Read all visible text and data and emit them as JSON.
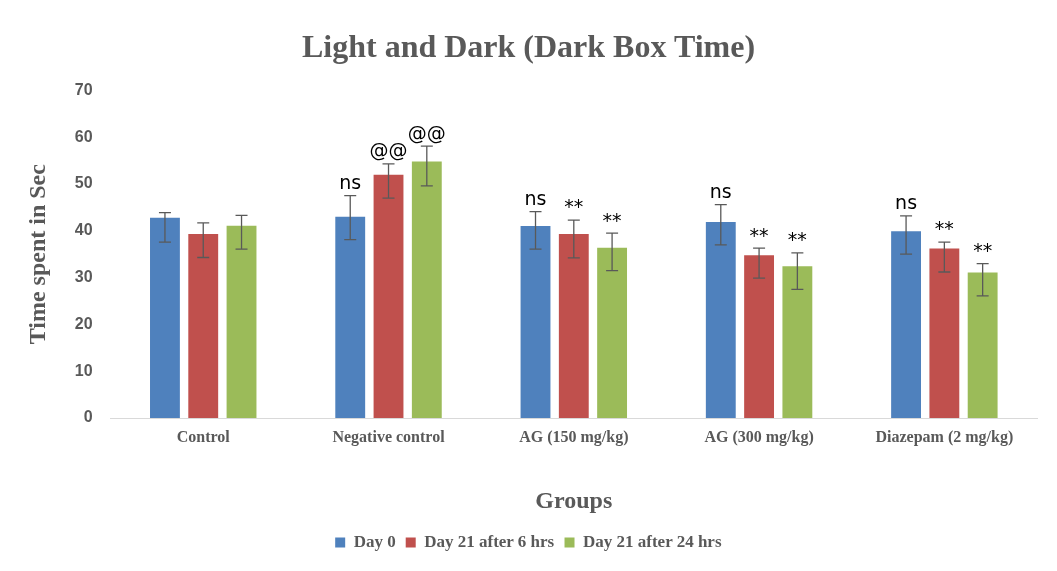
{
  "chart_data": {
    "type": "bar",
    "title": "Light and Dark (Dark Box Time)",
    "xlabel": "Groups",
    "ylabel": "Time spent in Sec",
    "categories": [
      "Control",
      "Negative control",
      "AG (150 mg/kg)",
      "AG (300 mg/kg)",
      "Diazepam (2 mg/kg)"
    ],
    "series": [
      {
        "name": "Day 0",
        "color": "#4f81bd",
        "values": [
          42.8,
          43.0,
          41.0,
          41.9,
          39.9
        ],
        "errors": [
          [
            37.6,
            43.9
          ],
          [
            38.1,
            47.5
          ],
          [
            36.1,
            44.1
          ],
          [
            37.0,
            45.6
          ],
          [
            35.0,
            43.2
          ]
        ],
        "value_labels": [
          null,
          "ns",
          "ns",
          "ns",
          "ns"
        ]
      },
      {
        "name": "Day 21 after 6 hrs",
        "color": "#c0504d",
        "values": [
          39.3,
          52.0,
          39.3,
          34.8,
          36.2
        ],
        "errors": [
          [
            34.3,
            41.7
          ],
          [
            47.0,
            54.3
          ],
          [
            34.2,
            42.3
          ],
          [
            29.9,
            36.3
          ],
          [
            31.2,
            37.6
          ]
        ],
        "value_labels": [
          null,
          "@@",
          "**",
          "**",
          "**"
        ]
      },
      {
        "name": "Day 21 after 24 hrs",
        "color": "#9bbb59",
        "values": [
          41.1,
          54.8,
          36.4,
          32.4,
          31.1
        ],
        "errors": [
          [
            36.1,
            43.3
          ],
          [
            49.6,
            58.1
          ],
          [
            31.5,
            39.5
          ],
          [
            27.5,
            35.3
          ],
          [
            26.1,
            33.0
          ]
        ],
        "value_labels": [
          null,
          "@@",
          "**",
          "**",
          "**"
        ]
      }
    ],
    "ylim": [
      0,
      70
    ],
    "yticks": [
      0,
      10,
      20,
      30,
      40,
      50,
      60,
      70
    ],
    "grid": false,
    "legend": "bottom"
  }
}
